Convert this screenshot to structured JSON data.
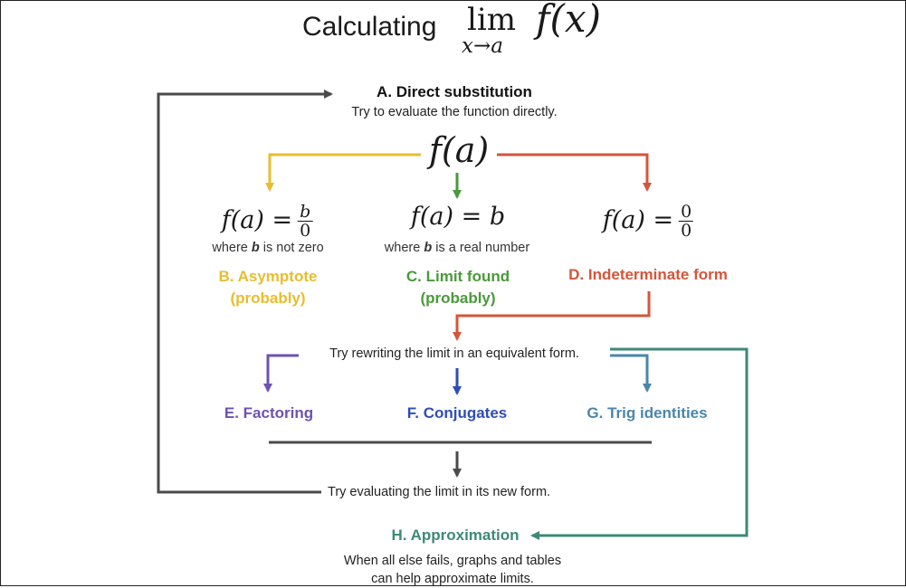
{
  "title": {
    "prefix": "Calculating",
    "lim": "lim",
    "subscript": "x→a",
    "func": "f(x)"
  },
  "direct": {
    "label": "A. Direct substitution",
    "desc": "Try to evaluate the function directly.",
    "fa": "f(a)"
  },
  "cases": {
    "left": {
      "lhs": "f(a) =",
      "num": "b",
      "den": "0",
      "note_pre": "where ",
      "note_b": "b",
      "note_post": " is not zero",
      "label_line1": "B. Asymptote",
      "label_line2": "(probably)"
    },
    "mid": {
      "expr": "f(a) = b",
      "note_pre": "where ",
      "note_b": "b",
      "note_post": " is a real number",
      "label_line1": "C. Limit found",
      "label_line2": "(probably)"
    },
    "right": {
      "lhs": "f(a) =",
      "num": "0",
      "den": "0",
      "label": "D. Indeterminate form"
    }
  },
  "rewrite": {
    "text": "Try rewriting the limit in an equivalent form."
  },
  "methods": {
    "e": "E. Factoring",
    "f": "F. Conjugates",
    "g": "G. Trig identities"
  },
  "evaluate": {
    "text": "Try evaluating the limit in its new form."
  },
  "approx": {
    "label": "H. Approximation",
    "line1": "When all else fails, graphs and tables",
    "line2": "can help approximate limits."
  },
  "colors": {
    "yellow": "#e8bd2f",
    "green": "#4a9a3a",
    "red": "#d4563a",
    "purple": "#6e52b0",
    "blue": "#2f4db5",
    "steel": "#4a86ab",
    "teal": "#3e8a75",
    "dark": "#4a4a4a"
  }
}
